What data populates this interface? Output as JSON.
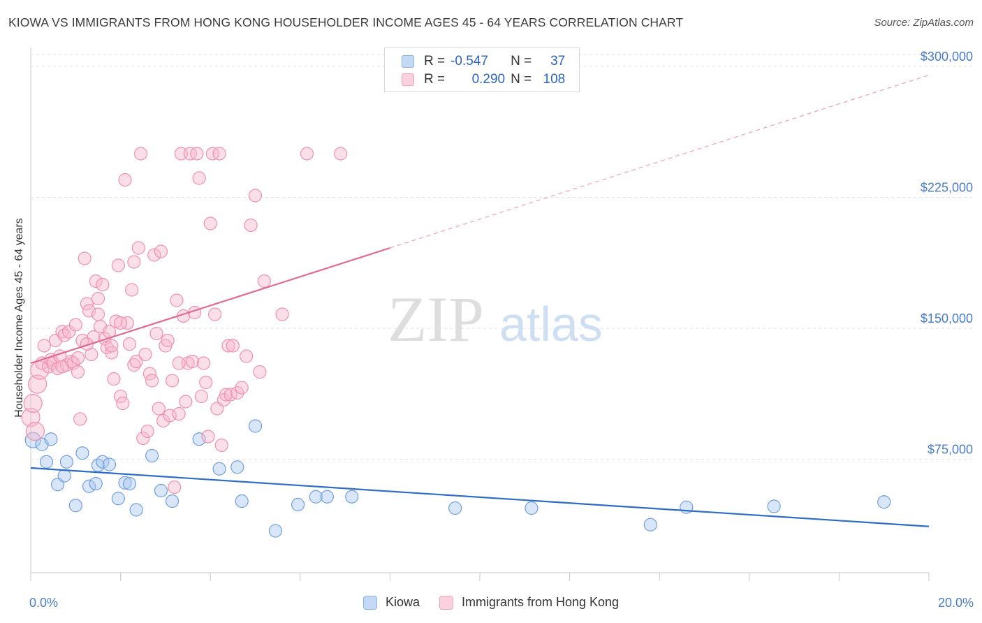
{
  "title": "KIOWA VS IMMIGRANTS FROM HONG KONG HOUSEHOLDER INCOME AGES 45 - 64 YEARS CORRELATION CHART",
  "source": "Source: ZipAtlas.com",
  "watermark": {
    "zip": "ZIP",
    "atlas": "atlas"
  },
  "legend": {
    "rows": [
      {
        "r_label": "R =",
        "r_value": "-0.547",
        "n_label": "N =",
        "n_value": "37",
        "color": "#a9c7ef"
      },
      {
        "r_label": "R =",
        "r_value": "0.290",
        "n_label": "N =",
        "n_value": "108",
        "color": "#f6b8cb"
      }
    ]
  },
  "bottom_legend": [
    {
      "label": "Kiowa",
      "color": "#a9c7ef"
    },
    {
      "label": "Immigrants from Hong Kong",
      "color": "#f6b8cb"
    }
  ],
  "x_axis": {
    "min_label": "0.0%",
    "max_label": "20.0%"
  },
  "chart_data": {
    "type": "scatter",
    "title": "KIOWA VS IMMIGRANTS FROM HONG KONG HOUSEHOLDER INCOME AGES 45 - 64 YEARS CORRELATION CHART",
    "xlabel": "",
    "ylabel": "Householder Income Ages 45 - 64 years",
    "xlim": [
      0,
      20
    ],
    "ylim": [
      10000,
      310000
    ],
    "y_ticks": [
      {
        "value": 75000,
        "label": "$75,000"
      },
      {
        "value": 150000,
        "label": "$150,000"
      },
      {
        "value": 225000,
        "label": "$225,000"
      },
      {
        "value": 300000,
        "label": "$300,000"
      }
    ],
    "grid": true,
    "legend_position": "top-center",
    "series": [
      {
        "name": "Kiowa",
        "color": "#a9c7ef",
        "stroke": "#6f9ee0",
        "trend": {
          "x0": 0.0,
          "y0": 70000,
          "x1": 20.0,
          "y1": 36500,
          "color": "#2d6cc8"
        },
        "points": [
          [
            0.05,
            86000
          ],
          [
            0.25,
            83500
          ],
          [
            0.35,
            73500
          ],
          [
            0.45,
            86500
          ],
          [
            0.6,
            60500
          ],
          [
            0.75,
            65500
          ],
          [
            0.8,
            73500
          ],
          [
            1.0,
            48500
          ],
          [
            1.15,
            78500
          ],
          [
            1.3,
            59500
          ],
          [
            1.45,
            61000
          ],
          [
            1.5,
            71500
          ],
          [
            1.6,
            73500
          ],
          [
            1.75,
            72000
          ],
          [
            1.95,
            52500
          ],
          [
            2.1,
            61500
          ],
          [
            2.2,
            61000
          ],
          [
            2.35,
            46000
          ],
          [
            2.7,
            77000
          ],
          [
            2.9,
            57000
          ],
          [
            3.15,
            51000
          ],
          [
            3.75,
            86500
          ],
          [
            4.2,
            69500
          ],
          [
            4.6,
            70500
          ],
          [
            4.7,
            51000
          ],
          [
            5.0,
            94000
          ],
          [
            5.45,
            34000
          ],
          [
            5.95,
            49000
          ],
          [
            6.35,
            53500
          ],
          [
            6.6,
            53500
          ],
          [
            7.15,
            53500
          ],
          [
            9.45,
            47000
          ],
          [
            11.15,
            47000
          ],
          [
            13.8,
            37500
          ],
          [
            14.6,
            47500
          ],
          [
            16.55,
            48000
          ],
          [
            19.0,
            50500
          ]
        ]
      },
      {
        "name": "Immigrants from Hong Kong",
        "color": "#f6b8cb",
        "stroke": "#ef8fae",
        "trend": {
          "x0": 0.0,
          "y0": 130000,
          "x1": 8.0,
          "y1": 196000,
          "x_dash_end": 20.0,
          "y_dash_end": 295000,
          "color": "#e06a92"
        },
        "points": [
          [
            0.0,
            99000
          ],
          [
            0.05,
            107000
          ],
          [
            0.1,
            91000
          ],
          [
            0.15,
            118000
          ],
          [
            0.2,
            126000
          ],
          [
            0.25,
            130000
          ],
          [
            0.3,
            140000
          ],
          [
            0.4,
            128000
          ],
          [
            0.45,
            132000
          ],
          [
            0.5,
            130000
          ],
          [
            0.55,
            143000
          ],
          [
            0.6,
            127000
          ],
          [
            0.65,
            134000
          ],
          [
            0.7,
            148000
          ],
          [
            0.75,
            146000
          ],
          [
            0.8,
            129000
          ],
          [
            0.85,
            148000
          ],
          [
            0.9,
            131000
          ],
          [
            0.95,
            130000
          ],
          [
            1.0,
            152000
          ],
          [
            1.05,
            133000
          ],
          [
            1.1,
            98000
          ],
          [
            1.15,
            143000
          ],
          [
            1.2,
            190000
          ],
          [
            1.25,
            164000
          ],
          [
            1.3,
            160000
          ],
          [
            1.35,
            135000
          ],
          [
            1.4,
            145000
          ],
          [
            1.45,
            177000
          ],
          [
            1.5,
            167000
          ],
          [
            1.55,
            151000
          ],
          [
            1.6,
            175000
          ],
          [
            1.65,
            144000
          ],
          [
            1.7,
            139000
          ],
          [
            1.75,
            148000
          ],
          [
            1.8,
            136000
          ],
          [
            1.85,
            121000
          ],
          [
            1.9,
            154000
          ],
          [
            1.95,
            186000
          ],
          [
            2.0,
            111000
          ],
          [
            2.05,
            107000
          ],
          [
            2.1,
            235000
          ],
          [
            2.15,
            153000
          ],
          [
            2.2,
            141000
          ],
          [
            2.25,
            172000
          ],
          [
            2.3,
            129000
          ],
          [
            2.35,
            131000
          ],
          [
            2.4,
            196000
          ],
          [
            2.45,
            250000
          ],
          [
            2.5,
            87000
          ],
          [
            2.55,
            135000
          ],
          [
            2.6,
            91000
          ],
          [
            2.65,
            124000
          ],
          [
            2.7,
            120000
          ],
          [
            2.75,
            192000
          ],
          [
            2.8,
            147000
          ],
          [
            2.85,
            104000
          ],
          [
            2.9,
            194000
          ],
          [
            2.95,
            97000
          ],
          [
            3.0,
            140000
          ],
          [
            3.05,
            143000
          ],
          [
            3.1,
            100000
          ],
          [
            3.15,
            120000
          ],
          [
            3.2,
            59000
          ],
          [
            3.25,
            166000
          ],
          [
            3.3,
            101000
          ],
          [
            3.35,
            250000
          ],
          [
            3.4,
            157000
          ],
          [
            3.45,
            108000
          ],
          [
            3.5,
            130000
          ],
          [
            3.55,
            250000
          ],
          [
            3.6,
            131000
          ],
          [
            3.65,
            159000
          ],
          [
            3.7,
            250000
          ],
          [
            3.75,
            236000
          ],
          [
            3.8,
            111000
          ],
          [
            3.85,
            130000
          ],
          [
            3.9,
            119000
          ],
          [
            3.95,
            88000
          ],
          [
            4.0,
            210000
          ],
          [
            4.05,
            250000
          ],
          [
            4.1,
            158000
          ],
          [
            4.15,
            104000
          ],
          [
            4.2,
            250000
          ],
          [
            4.25,
            83000
          ],
          [
            4.3,
            109000
          ],
          [
            4.35,
            112000
          ],
          [
            4.4,
            140000
          ],
          [
            4.45,
            112000
          ],
          [
            4.5,
            140000
          ],
          [
            4.6,
            113000
          ],
          [
            4.7,
            116000
          ],
          [
            4.8,
            134000
          ],
          [
            4.9,
            209000
          ],
          [
            5.0,
            226000
          ],
          [
            5.1,
            125000
          ],
          [
            5.2,
            177000
          ],
          [
            5.6,
            158000
          ],
          [
            6.15,
            250000
          ],
          [
            6.9,
            250000
          ],
          [
            1.5,
            158000
          ],
          [
            1.8,
            140000
          ],
          [
            2.0,
            153000
          ],
          [
            2.3,
            188000
          ],
          [
            1.05,
            125000
          ],
          [
            0.7,
            128000
          ],
          [
            1.25,
            141000
          ],
          [
            3.3,
            130000
          ]
        ]
      }
    ]
  }
}
